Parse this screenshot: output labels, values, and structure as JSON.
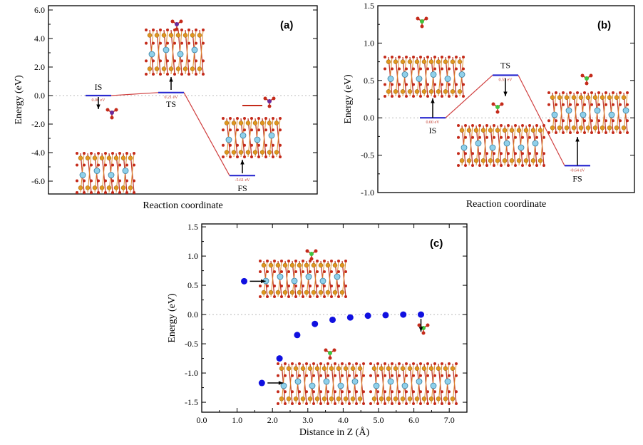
{
  "chart_data": [
    {
      "type": "line",
      "panel": "(a)",
      "title": "",
      "xlabel": "Reaction coordinate",
      "ylabel": "Energy (eV)",
      "ylim": [
        -6.9,
        6.3
      ],
      "yticks": [
        "6.0",
        "4.0",
        "2.0",
        "0.0",
        "-2.0",
        "-4.0",
        "-6.0"
      ],
      "ytick_values": [
        6,
        4,
        2,
        0,
        -2,
        -4,
        -6
      ],
      "states": [
        {
          "label": "IS",
          "energy": 0.0,
          "value_label": "0.00 eV"
        },
        {
          "label": "TS",
          "energy": 0.21,
          "value_label": "0.21 eV"
        },
        {
          "label": "FS",
          "energy": -5.61,
          "value_label": "-5.61 eV"
        }
      ]
    },
    {
      "type": "line",
      "panel": "(b)",
      "title": "",
      "xlabel": "Reaction coordinate",
      "ylabel": "Energy (eV)",
      "ylim": [
        -1.0,
        1.5
      ],
      "yticks": [
        "1.5",
        "1.0",
        "0.5",
        "0.0",
        "-0.5",
        "-1.0"
      ],
      "ytick_values": [
        1.5,
        1.0,
        0.5,
        0,
        -0.5,
        -1.0
      ],
      "states": [
        {
          "label": "IS",
          "energy": 0.0,
          "value_label": "0.00 eV"
        },
        {
          "label": "TS",
          "energy": 0.57,
          "value_label": "0.57 eV"
        },
        {
          "label": "FS",
          "energy": -0.64,
          "value_label": "-0.64 eV"
        }
      ]
    },
    {
      "type": "scatter",
      "panel": "(c)",
      "title": "",
      "xlabel": "Distance in Z (Å)",
      "ylabel": "Energy (eV)",
      "xlim": [
        0,
        7.5
      ],
      "ylim": [
        -1.67,
        1.55
      ],
      "xticks": [
        "0.0",
        "1.0",
        "2.0",
        "3.0",
        "4.0",
        "5.0",
        "6.0",
        "7.0"
      ],
      "xtick_values": [
        0,
        1,
        2,
        3,
        4,
        5,
        6,
        7
      ],
      "yticks": [
        "1.5",
        "1.0",
        "0.5",
        "0.0",
        "-0.5",
        "-1.0",
        "-1.5"
      ],
      "ytick_values": [
        1.5,
        1.0,
        0.5,
        0,
        -0.5,
        -1.0,
        -1.5
      ],
      "x": [
        1.2,
        1.7,
        2.2,
        2.7,
        3.2,
        3.7,
        4.2,
        4.7,
        5.2,
        5.7,
        6.2
      ],
      "y": [
        0.57,
        -1.17,
        -0.75,
        -0.35,
        -0.16,
        -0.09,
        -0.05,
        -0.02,
        -0.01,
        0.0,
        0.0
      ],
      "color": "#1010e0"
    }
  ]
}
